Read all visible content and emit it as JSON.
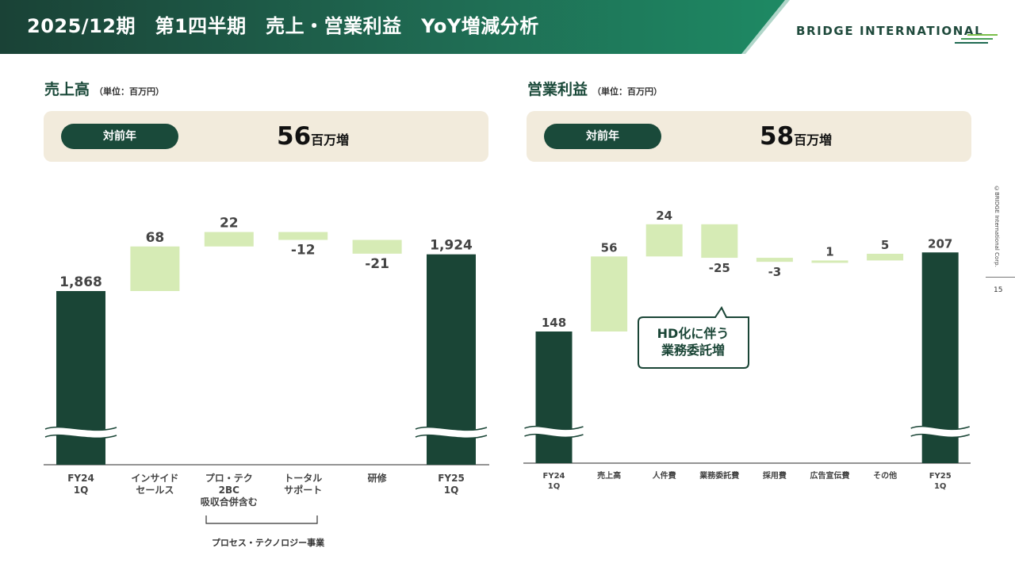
{
  "header": {
    "title": "2025/12期　第1四半期　売上・営業利益　YoY増減分析",
    "logo_text": "BRIDGE INTERNATIONAL"
  },
  "sidebar": {
    "copyright": "©BRIDGE International Corp.",
    "page_number": "15"
  },
  "colors": {
    "dark_green": "#1a4536",
    "light_green": "#d6ebb5",
    "header_green": "#1f6a52",
    "beige": "#f2ebdc"
  },
  "chart_data": [
    {
      "type": "waterfall",
      "title": "売上高",
      "unit": "（単位：百万円）",
      "summary": {
        "badge": "対前年",
        "value": "56",
        "suffix": "百万増"
      },
      "categories": [
        "FY24\n1Q",
        "インサイド\nセールス",
        "プロ・テク\n2BC\n吸収合併含む",
        "トータル\nサポート",
        "研修",
        "FY25\n1Q"
      ],
      "values": [
        1868,
        68,
        22,
        -12,
        -21,
        1924
      ],
      "labels": [
        "1,868",
        "68",
        "22",
        "-12",
        "-21",
        "1,924"
      ],
      "bar_kinds": [
        "total",
        "delta",
        "delta",
        "delta",
        "delta",
        "total"
      ],
      "axis_break": true,
      "bracket_label": "プロセス・テクノロジー事業"
    },
    {
      "type": "waterfall",
      "title": "営業利益",
      "unit": "（単位：百万円）",
      "summary": {
        "badge": "対前年",
        "value": "58",
        "suffix": "百万増"
      },
      "categories": [
        "FY24\n1Q",
        "売上高",
        "人件費",
        "業務委託費",
        "採用費",
        "広告宣伝費",
        "その他",
        "FY25\n1Q"
      ],
      "values": [
        148,
        56,
        24,
        -25,
        -3,
        1,
        5,
        207
      ],
      "labels": [
        "148",
        "56",
        "24",
        "-25",
        "-3",
        "1",
        "5",
        "207"
      ],
      "bar_kinds": [
        "total",
        "delta",
        "delta",
        "delta",
        "delta",
        "delta",
        "delta",
        "total"
      ],
      "axis_break": true,
      "callout": "HD化に伴う\n業務委託増"
    }
  ]
}
